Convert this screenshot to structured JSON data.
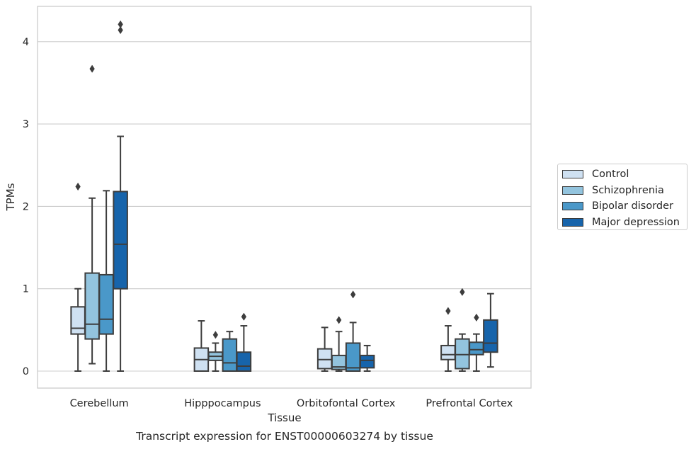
{
  "chart_data": {
    "type": "boxplot",
    "title": "Transcript expression for ENST00000603274 by tissue",
    "xlabel": "Tissue",
    "ylabel": "TPMs",
    "ylim": [
      -0.2,
      4.45
    ],
    "yticks": [
      0,
      1,
      2,
      3,
      4
    ],
    "grid": "horizontal",
    "legend_position": "right",
    "categories": [
      "Cerebellum",
      "Hipppocampus",
      "Orbitofontal Cortex",
      "Prefrontal Cortex"
    ],
    "series": [
      {
        "name": "Control",
        "color": "#cfe1f2",
        "boxes": [
          {
            "whislo": 0,
            "q1": 0.45,
            "med": 0.52,
            "q3": 0.78,
            "whishi": 1.0,
            "fliers": [
              2.24
            ]
          },
          {
            "whislo": 0,
            "q1": 0,
            "med": 0.14,
            "q3": 0.28,
            "whishi": 0.61,
            "fliers": []
          },
          {
            "whislo": 0,
            "q1": 0.03,
            "med": 0.14,
            "q3": 0.27,
            "whishi": 0.53,
            "fliers": []
          },
          {
            "whislo": 0,
            "q1": 0.14,
            "med": 0.2,
            "q3": 0.31,
            "whishi": 0.55,
            "fliers": [
              0.73
            ]
          }
        ]
      },
      {
        "name": "Schizophrenia",
        "color": "#93c4de",
        "boxes": [
          {
            "whislo": 0.09,
            "q1": 0.39,
            "med": 0.57,
            "q3": 1.19,
            "whishi": 2.1,
            "fliers": [
              3.67
            ]
          },
          {
            "whislo": 0,
            "q1": 0.13,
            "med": 0.18,
            "q3": 0.23,
            "whishi": 0.34,
            "fliers": [
              0.44
            ]
          },
          {
            "whislo": 0,
            "q1": 0.02,
            "med": 0.05,
            "q3": 0.19,
            "whishi": 0.48,
            "fliers": [
              0.62
            ]
          },
          {
            "whislo": 0,
            "q1": 0.03,
            "med": 0.2,
            "q3": 0.39,
            "whishi": 0.45,
            "fliers": [
              0.96
            ]
          }
        ]
      },
      {
        "name": "Bipolar disorder",
        "color": "#4a98c9",
        "boxes": [
          {
            "whislo": 0,
            "q1": 0.45,
            "med": 0.63,
            "q3": 1.17,
            "whishi": 2.19,
            "fliers": []
          },
          {
            "whislo": 0,
            "q1": 0,
            "med": 0.1,
            "q3": 0.39,
            "whishi": 0.48,
            "fliers": []
          },
          {
            "whislo": 0,
            "q1": 0,
            "med": 0.04,
            "q3": 0.34,
            "whishi": 0.59,
            "fliers": [
              0.93
            ]
          },
          {
            "whislo": 0,
            "q1": 0.2,
            "med": 0.26,
            "q3": 0.35,
            "whishi": 0.45,
            "fliers": [
              0.65
            ]
          }
        ]
      },
      {
        "name": "Major depression",
        "color": "#1764ab",
        "boxes": [
          {
            "whislo": 0,
            "q1": 1.0,
            "med": 1.54,
            "q3": 2.18,
            "whishi": 2.85,
            "fliers": [
              4.14,
              4.21
            ]
          },
          {
            "whislo": 0,
            "q1": 0,
            "med": 0.06,
            "q3": 0.23,
            "whishi": 0.55,
            "fliers": [
              0.66
            ]
          },
          {
            "whislo": 0,
            "q1": 0.04,
            "med": 0.13,
            "q3": 0.19,
            "whishi": 0.31,
            "fliers": []
          },
          {
            "whislo": 0.05,
            "q1": 0.23,
            "med": 0.34,
            "q3": 0.62,
            "whishi": 0.94,
            "fliers": []
          }
        ]
      }
    ]
  }
}
